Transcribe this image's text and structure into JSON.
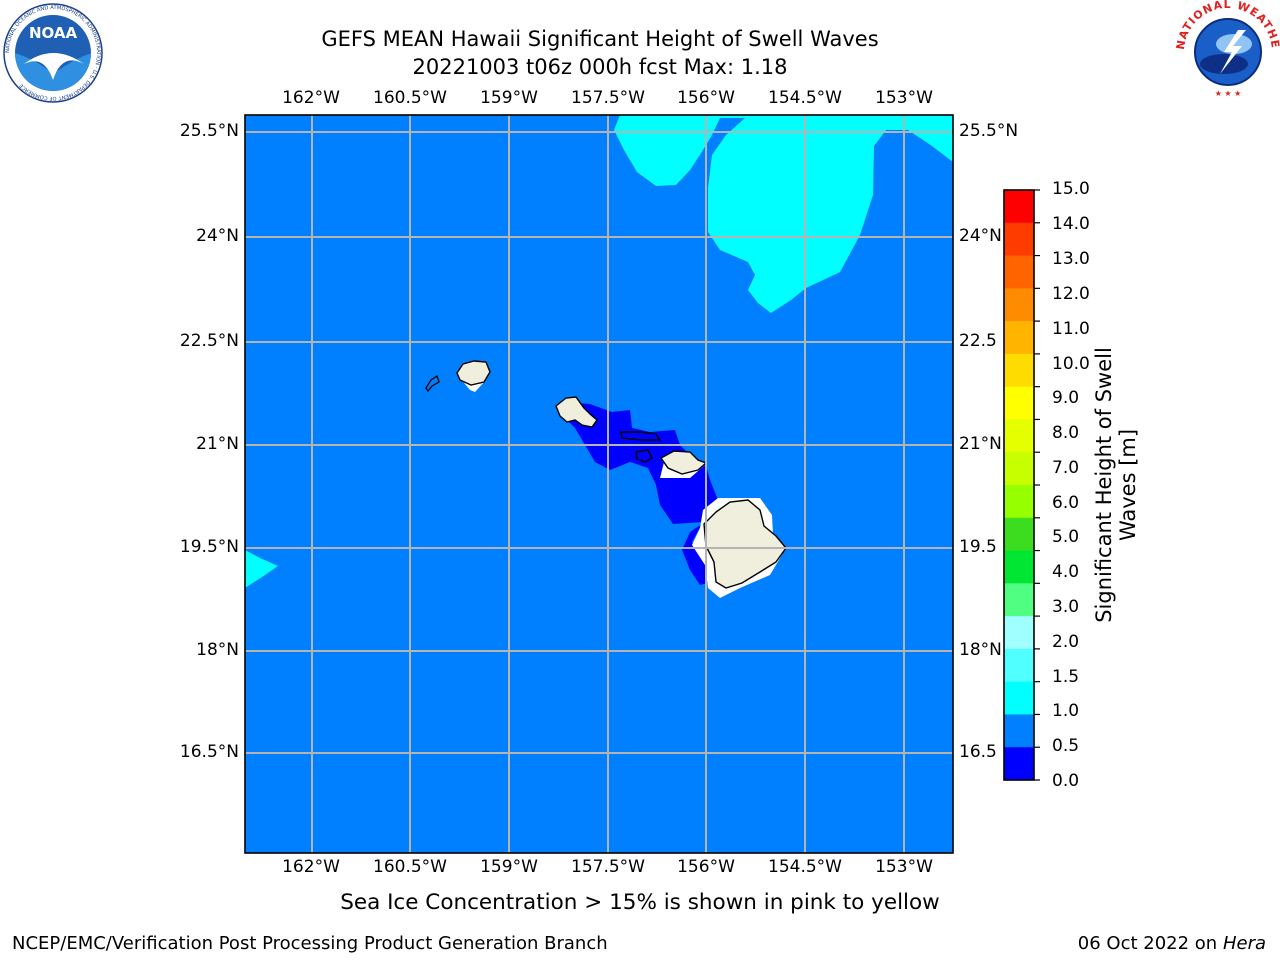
{
  "title": {
    "line1": "GEFS MEAN Hawaii Significant Height of Swell Waves",
    "line2": "20221003 t06z 000h fcst   Max: 1.18"
  },
  "map": {
    "lon_ticks": [
      "162°W",
      "160.5°W",
      "159°W",
      "157.5°W",
      "156°W",
      "154.5°W",
      "153°W"
    ],
    "lat_ticks": [
      "25.5°N",
      "24°N",
      "22.5°N",
      "21°N",
      "19.5°N",
      "18°N",
      "16.5°N"
    ],
    "lat_ticks_right": [
      "25.5°N",
      "24°N",
      "22.5",
      "21°N",
      "19.5",
      "18°N",
      "16.5"
    ],
    "lon_range": [
      "163°W",
      "152.7°W"
    ],
    "lat_range": [
      "15.5°N",
      "25.7°N"
    ],
    "grid": true,
    "colors": {
      "ocean": "#0080FF",
      "swell_0_05": "#0000FF",
      "swell_1_15": "#00FFFF",
      "land": "#F0EEDC",
      "grid": "#B4B4B4"
    }
  },
  "colorbar": {
    "labels": [
      "15.0",
      "14.0",
      "13.0",
      "12.0",
      "11.0",
      "10.0",
      "9.0",
      "8.0",
      "7.0",
      "6.0",
      "5.0",
      "4.0",
      "3.0",
      "2.0",
      "1.5",
      "1.0",
      "0.5",
      "0.0"
    ],
    "colors": [
      "#FF0000",
      "#FF3C00",
      "#FF6400",
      "#FF8C00",
      "#FFB400",
      "#FFDC00",
      "#FFFF00",
      "#E6FF00",
      "#C8FF00",
      "#96FF00",
      "#3CDC1E",
      "#00E632",
      "#50FF82",
      "#A0FFFF",
      "#50FFFF",
      "#00FFFF",
      "#0080FF",
      "#0000FF"
    ],
    "title_line1": "Significant Height of Swell",
    "title_line2": "Waves [m]"
  },
  "note": "Sea Ice Concentration > 15% is shown in pink to yellow",
  "footer": {
    "left": "NCEP/EMC/Verification Post Processing Product Generation Branch",
    "date": "06 Oct 2022 on ",
    "machine": "Hera"
  },
  "logos": {
    "noaa": "NOAA",
    "noaa_ring": "NATIONAL OCEANIC AND ATMOSPHERIC ADMINISTRATION · U.S. DEPARTMENT OF COMMERCE",
    "nws_ring": "NATIONAL WEATHER SERVICE"
  }
}
